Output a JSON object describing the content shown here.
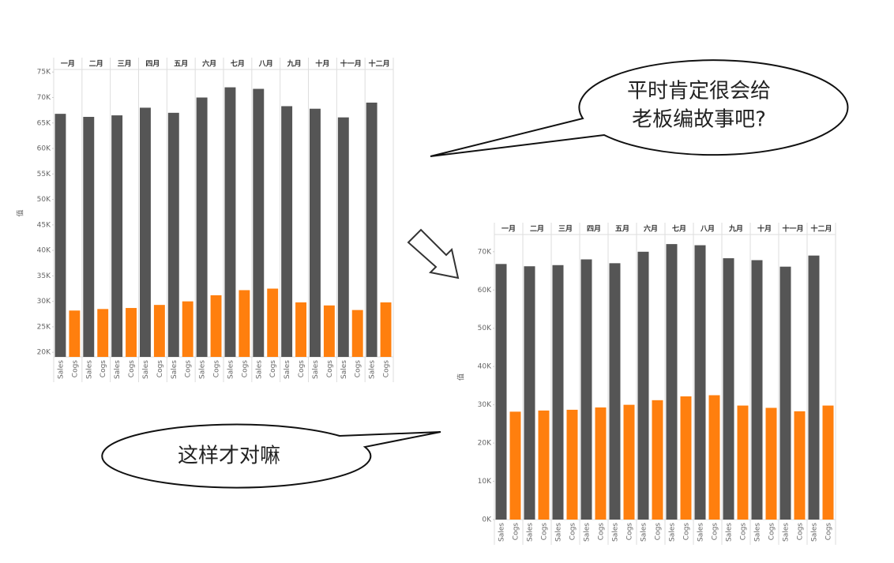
{
  "chart_data": [
    {
      "type": "bar",
      "ylabel": "值",
      "categories": [
        "一月",
        "二月",
        "三月",
        "四月",
        "五月",
        "六月",
        "七月",
        "八月",
        "九月",
        "十月",
        "十一月",
        "十二月"
      ],
      "series": [
        {
          "name": "Sales",
          "color": "#555555",
          "values": [
            66800,
            66200,
            66500,
            68000,
            67000,
            70000,
            72000,
            71700,
            68300,
            67800,
            66100,
            69000
          ]
        },
        {
          "name": "Cogs",
          "color": "#ff7f0e",
          "values": [
            28200,
            28500,
            28700,
            29300,
            30000,
            31200,
            32200,
            32500,
            29800,
            29200,
            28300,
            29800
          ]
        }
      ],
      "ylim": [
        19100,
        75500
      ],
      "yticks": [
        {
          "value": 20000,
          "label": "20K"
        },
        {
          "value": 25000,
          "label": "25K"
        },
        {
          "value": 30000,
          "label": "30K"
        },
        {
          "value": 35000,
          "label": "35K"
        },
        {
          "value": 40000,
          "label": "40K"
        },
        {
          "value": 45000,
          "label": "45K"
        },
        {
          "value": 50000,
          "label": "50K"
        },
        {
          "value": 55000,
          "label": "55K"
        },
        {
          "value": 60000,
          "label": "60K"
        },
        {
          "value": 65000,
          "label": "65K"
        },
        {
          "value": 70000,
          "label": "70K"
        },
        {
          "value": 75000,
          "label": "75K"
        }
      ],
      "grid": false
    },
    {
      "type": "bar",
      "ylabel": "值",
      "categories": [
        "一月",
        "二月",
        "三月",
        "四月",
        "五月",
        "六月",
        "七月",
        "八月",
        "九月",
        "十月",
        "十一月",
        "十二月"
      ],
      "series": [
        {
          "name": "Sales",
          "color": "#555555",
          "values": [
            66800,
            66200,
            66500,
            68000,
            67000,
            70000,
            72000,
            71700,
            68300,
            67800,
            66100,
            69000
          ]
        },
        {
          "name": "Cogs",
          "color": "#ff7f0e",
          "values": [
            28200,
            28500,
            28700,
            29300,
            30000,
            31200,
            32200,
            32500,
            29800,
            29200,
            28300,
            29800
          ]
        }
      ],
      "ylim": [
        0,
        74500
      ],
      "yticks": [
        {
          "value": 0,
          "label": "0K"
        },
        {
          "value": 10000,
          "label": "10K"
        },
        {
          "value": 20000,
          "label": "20K"
        },
        {
          "value": 30000,
          "label": "30K"
        },
        {
          "value": 40000,
          "label": "40K"
        },
        {
          "value": 50000,
          "label": "50K"
        },
        {
          "value": 60000,
          "label": "60K"
        },
        {
          "value": 70000,
          "label": "70K"
        }
      ],
      "grid": false
    }
  ],
  "callouts": [
    {
      "lines": [
        "平时肯定很会给",
        "老板编故事吧?"
      ]
    },
    {
      "lines": [
        "这样才对嘛"
      ]
    }
  ]
}
